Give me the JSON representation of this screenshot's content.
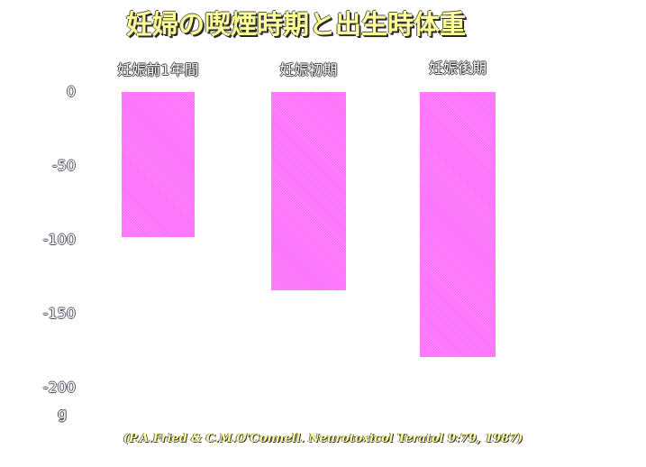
{
  "chart_data": {
    "type": "bar",
    "title": "妊婦の喫煙時期と出生時体重",
    "categories": [
      "妊娠前1年間",
      "妊娠初期",
      "妊娠後期"
    ],
    "values": [
      -98,
      -134,
      -179
    ],
    "ylabel": "g",
    "ylim": [
      -200,
      0
    ],
    "yticks": [
      "0",
      "-50",
      "-100",
      "-150",
      "-200"
    ],
    "grid": false,
    "bar_color": "#ff66ff",
    "title_color": "#ffff99",
    "citation": "(P.A.Fried & C.M.O'Connell. Neurotoxicol Teratol 9:79, 1987)"
  }
}
